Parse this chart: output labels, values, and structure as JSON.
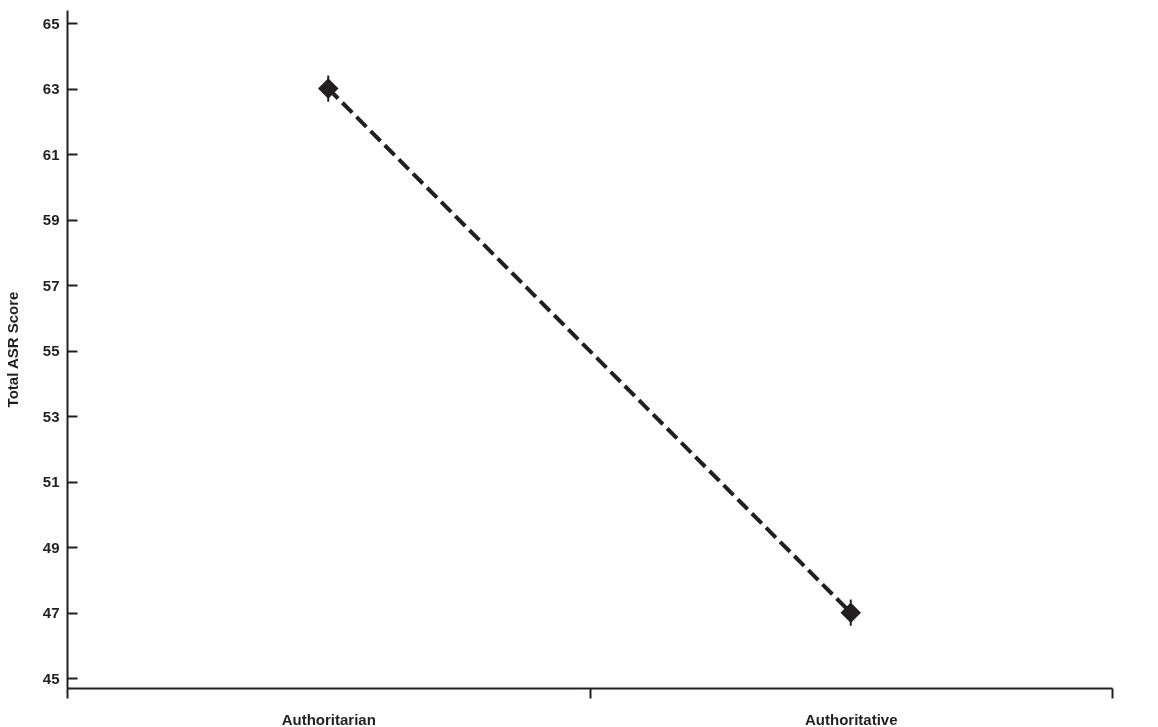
{
  "chart_data": {
    "type": "line",
    "ylabel": "Total ASR Score",
    "categories": [
      "Authoritarian",
      "Authoritative"
    ],
    "values": [
      63,
      47
    ],
    "errors": [
      0.4,
      0.4
    ],
    "color": "#231f20",
    "marker": "diamond",
    "line_style": "dashed",
    "ylim": [
      44.7,
      65.4
    ],
    "yticks": [
      45,
      47,
      49,
      51,
      53,
      55,
      57,
      59,
      61,
      63,
      65
    ],
    "grid": false
  }
}
